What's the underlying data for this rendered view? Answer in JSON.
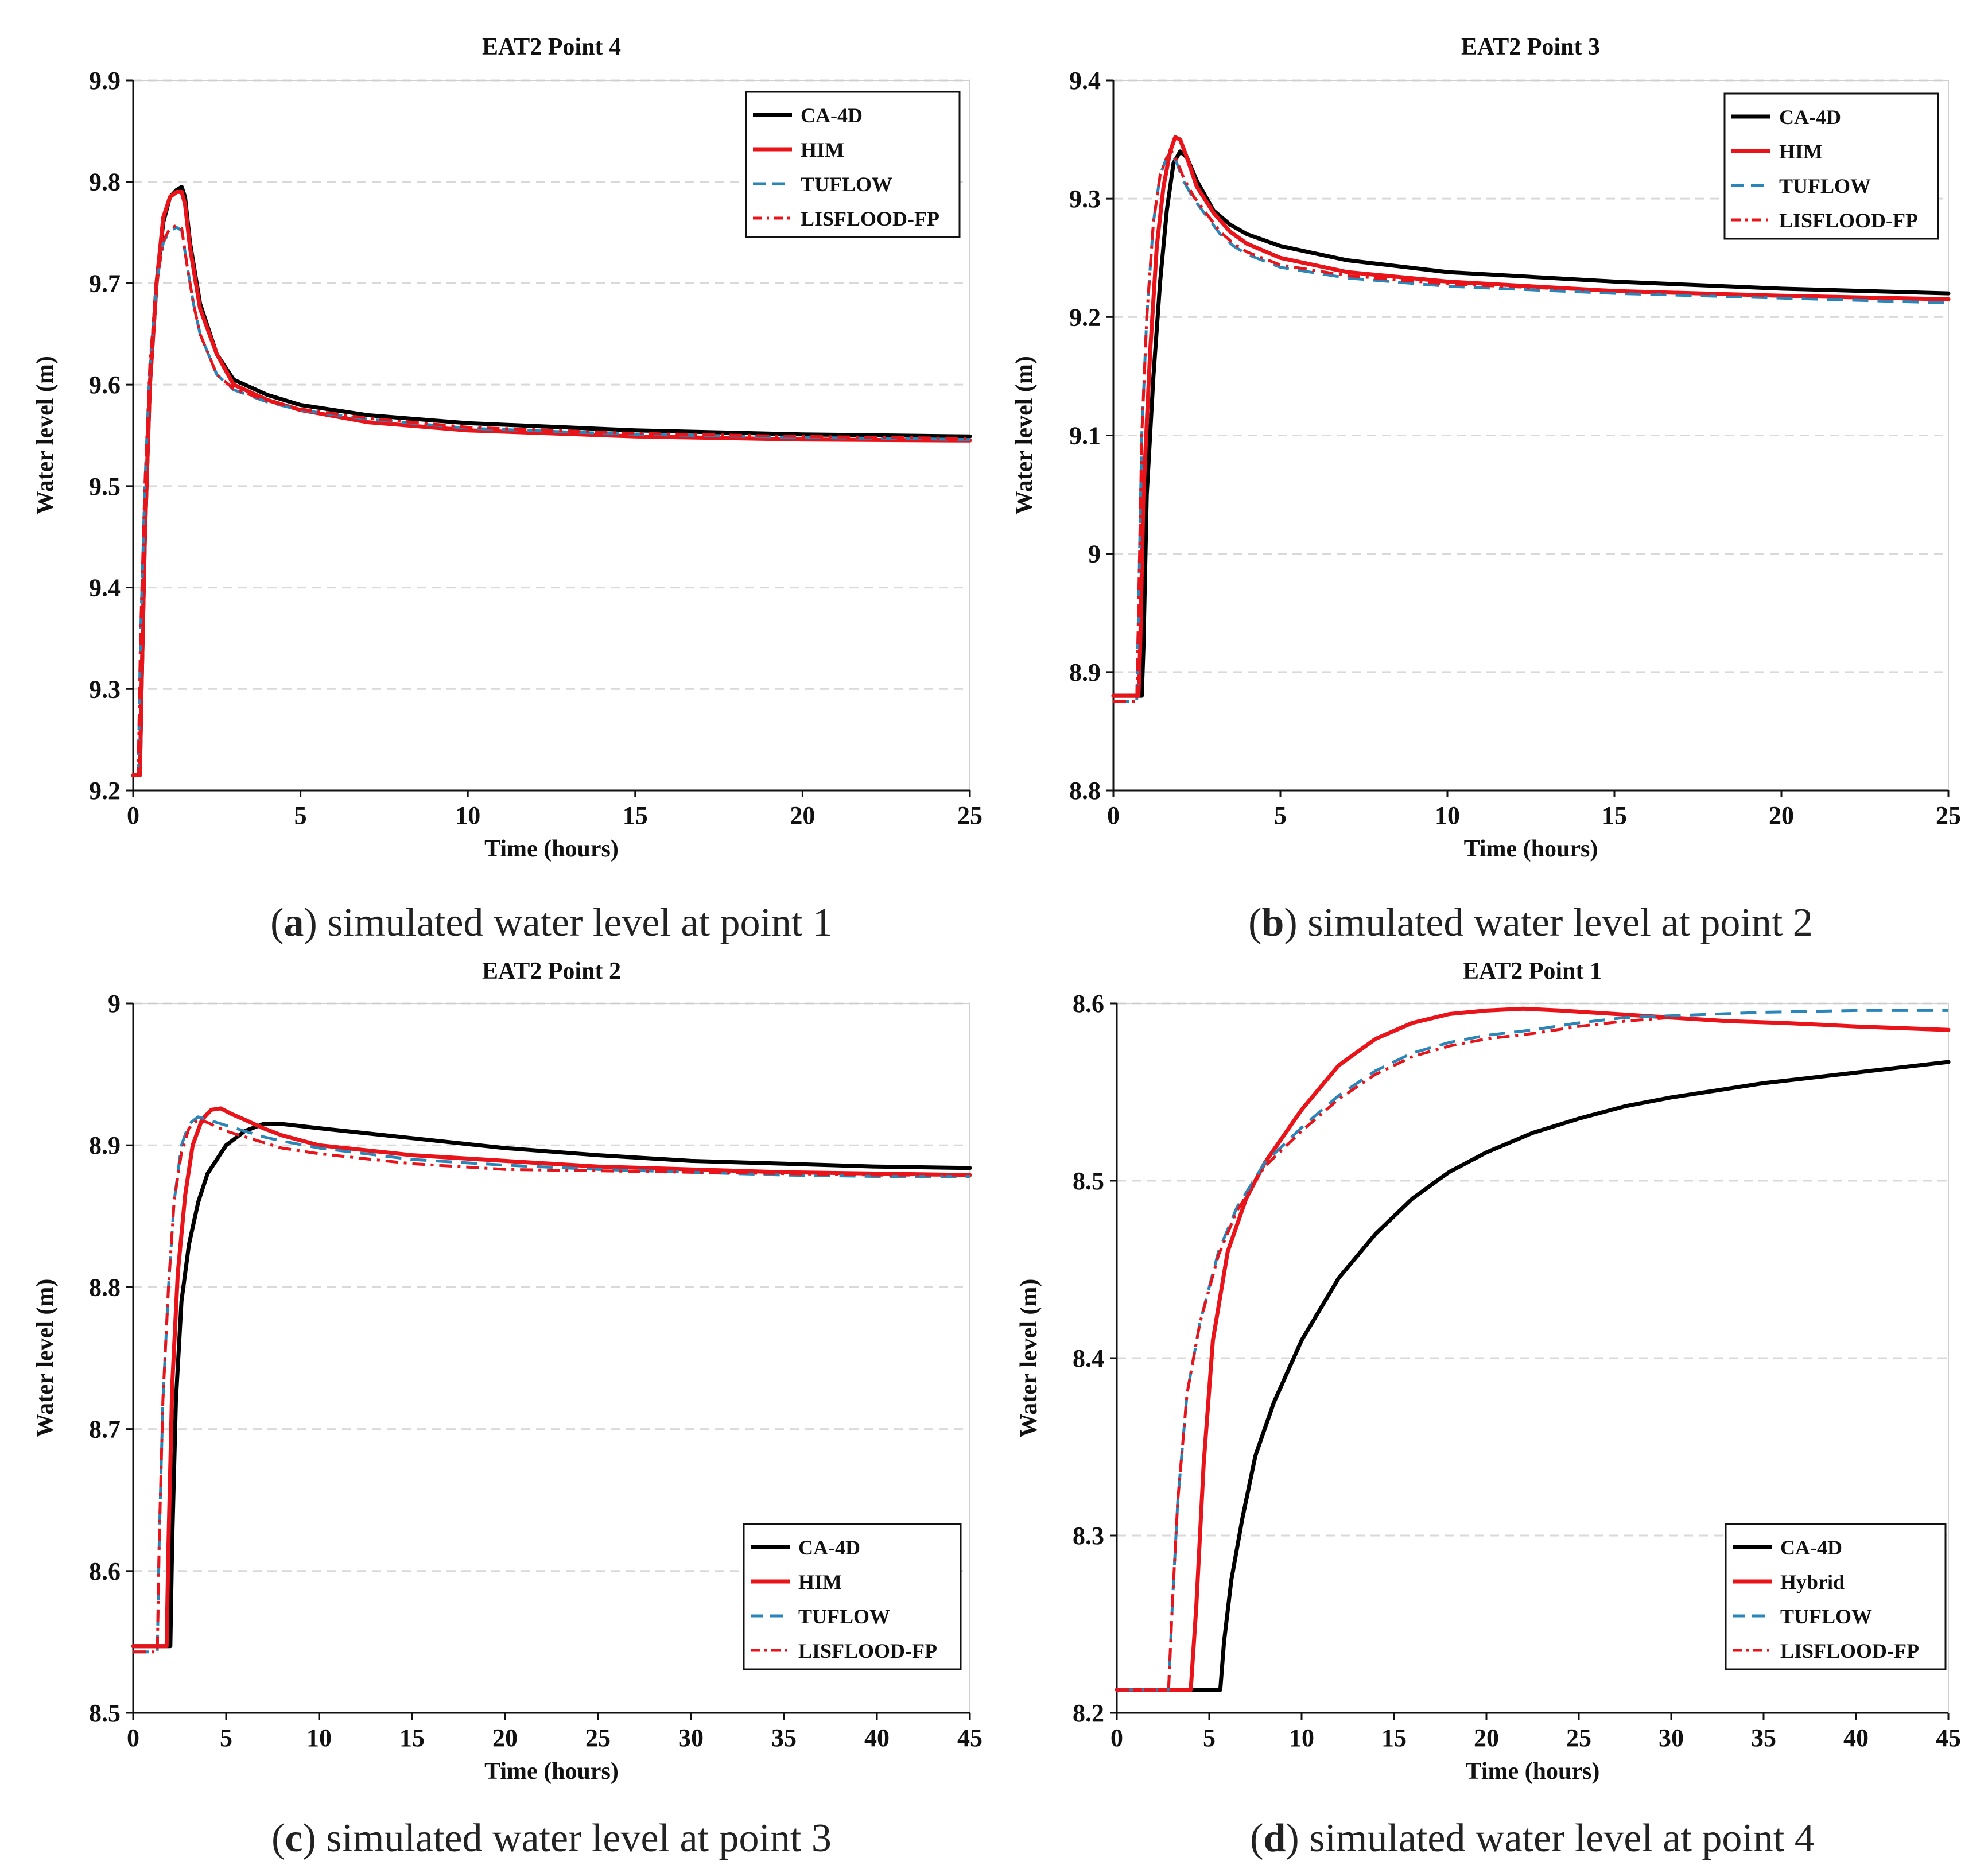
{
  "chart_data": [
    {
      "type": "line",
      "title": "EAT2 Point 4",
      "caption_letter": "a",
      "caption_text": "simulated water level at point 1",
      "xlabel": "Time (hours)",
      "ylabel": "Water level (m)",
      "xlim": [
        0,
        25
      ],
      "ylim": [
        9.2,
        9.9
      ],
      "xticks": [
        0,
        5,
        10,
        15,
        20,
        25
      ],
      "xtick_labels": [
        "0",
        "5",
        "10",
        "15",
        "20",
        "25"
      ],
      "yticks": [
        9.2,
        9.3,
        9.4,
        9.5,
        9.6,
        9.7,
        9.8,
        9.9
      ],
      "ytick_labels": [
        "9.2",
        "9.3",
        "9.4",
        "9.5",
        "9.6",
        "9.7",
        "9.8",
        "9.9"
      ],
      "grid": true,
      "legend_position": "top-right",
      "series": [
        {
          "name": "CA-4D",
          "color": "#000000",
          "style": "solid",
          "x": [
            0,
            0.2,
            0.25,
            0.35,
            0.5,
            0.7,
            0.9,
            1.1,
            1.3,
            1.45,
            1.55,
            1.7,
            2.0,
            2.5,
            3.0,
            4.0,
            5.0,
            7.0,
            10.0,
            15.0,
            20.0,
            25.0
          ],
          "y": [
            9.215,
            9.215,
            9.3,
            9.45,
            9.6,
            9.7,
            9.76,
            9.785,
            9.792,
            9.795,
            9.785,
            9.74,
            9.68,
            9.63,
            9.605,
            9.59,
            9.58,
            9.57,
            9.562,
            9.555,
            9.551,
            9.549
          ]
        },
        {
          "name": "HIM",
          "color": "#e8141a",
          "style": "solid",
          "x": [
            0,
            0.2,
            0.25,
            0.35,
            0.5,
            0.7,
            0.9,
            1.1,
            1.3,
            1.45,
            1.55,
            1.7,
            2.0,
            2.5,
            3.0,
            4.0,
            5.0,
            7.0,
            10.0,
            15.0,
            20.0,
            25.0
          ],
          "y": [
            9.215,
            9.215,
            9.3,
            9.45,
            9.6,
            9.7,
            9.765,
            9.785,
            9.79,
            9.79,
            9.778,
            9.735,
            9.675,
            9.63,
            9.6,
            9.585,
            9.575,
            9.563,
            9.555,
            9.549,
            9.546,
            9.545
          ]
        },
        {
          "name": "TUFLOW",
          "color": "#2a85b8",
          "style": "dashed",
          "x": [
            0,
            0.15,
            0.22,
            0.35,
            0.5,
            0.7,
            0.9,
            1.1,
            1.3,
            1.45,
            1.6,
            1.8,
            2.0,
            2.5,
            3.0,
            4.0,
            5.0,
            7.0,
            10.0,
            15.0,
            20.0,
            25.0
          ],
          "y": [
            9.215,
            9.215,
            9.35,
            9.5,
            9.62,
            9.7,
            9.74,
            9.752,
            9.755,
            9.752,
            9.72,
            9.68,
            9.65,
            9.61,
            9.595,
            9.583,
            9.575,
            9.566,
            9.557,
            9.551,
            9.548,
            9.546
          ]
        },
        {
          "name": "LISFLOOD-FP",
          "color": "#e8141a",
          "style": "dashdot",
          "x": [
            0,
            0.15,
            0.22,
            0.35,
            0.5,
            0.7,
            0.9,
            1.1,
            1.3,
            1.45,
            1.6,
            1.8,
            2.0,
            2.5,
            3.0,
            4.0,
            5.0,
            7.0,
            10.0,
            15.0,
            20.0,
            25.0
          ],
          "y": [
            9.215,
            9.215,
            9.35,
            9.5,
            9.62,
            9.7,
            9.742,
            9.754,
            9.757,
            9.754,
            9.72,
            9.68,
            9.65,
            9.61,
            9.596,
            9.584,
            9.576,
            9.567,
            9.558,
            9.552,
            9.549,
            9.547
          ]
        }
      ]
    },
    {
      "type": "line",
      "title": "EAT2 Point 3",
      "caption_letter": "b",
      "caption_text": "simulated water level at point 2",
      "xlabel": "Time (hours)",
      "ylabel": "Water level (m)",
      "xlim": [
        0,
        25
      ],
      "ylim": [
        8.8,
        9.4
      ],
      "xticks": [
        0,
        5,
        10,
        15,
        20,
        25
      ],
      "xtick_labels": [
        "0",
        "5",
        "10",
        "15",
        "20",
        "25"
      ],
      "yticks": [
        8.8,
        8.9,
        9.0,
        9.1,
        9.2,
        9.3,
        9.4
      ],
      "ytick_labels": [
        "8.8",
        "8.9",
        "9",
        "9.1",
        "9.2",
        "9.3",
        "9.4"
      ],
      "grid": true,
      "legend_position": "top-right",
      "series": [
        {
          "name": "CA-4D",
          "color": "#000000",
          "style": "solid",
          "x": [
            0,
            0.85,
            0.9,
            1.0,
            1.2,
            1.4,
            1.6,
            1.8,
            2.0,
            2.2,
            2.5,
            3.0,
            3.5,
            4.0,
            5.0,
            7.0,
            10.0,
            15.0,
            20.0,
            25.0
          ],
          "y": [
            8.88,
            8.88,
            8.92,
            9.05,
            9.15,
            9.23,
            9.29,
            9.33,
            9.34,
            9.335,
            9.315,
            9.29,
            9.278,
            9.27,
            9.26,
            9.248,
            9.238,
            9.23,
            9.224,
            9.22
          ]
        },
        {
          "name": "HIM",
          "color": "#e8141a",
          "style": "solid",
          "x": [
            0,
            0.75,
            0.8,
            0.9,
            1.1,
            1.3,
            1.5,
            1.7,
            1.85,
            2.0,
            2.2,
            2.5,
            3.0,
            3.5,
            4.0,
            5.0,
            7.0,
            10.0,
            15.0,
            20.0,
            25.0
          ],
          "y": [
            8.88,
            8.88,
            8.92,
            9.05,
            9.17,
            9.26,
            9.31,
            9.34,
            9.352,
            9.35,
            9.335,
            9.31,
            9.288,
            9.272,
            9.262,
            9.25,
            9.238,
            9.23,
            9.222,
            9.218,
            9.215
          ]
        },
        {
          "name": "TUFLOW",
          "color": "#2a85b8",
          "style": "dashed",
          "x": [
            0,
            0.7,
            0.75,
            0.85,
            1.0,
            1.2,
            1.4,
            1.6,
            1.75,
            1.9,
            2.1,
            2.4,
            2.8,
            3.2,
            3.6,
            4.0,
            5.0,
            7.0,
            10.0,
            15.0,
            20.0,
            25.0
          ],
          "y": [
            8.875,
            8.875,
            8.95,
            9.1,
            9.2,
            9.28,
            9.32,
            9.335,
            9.338,
            9.33,
            9.315,
            9.3,
            9.285,
            9.27,
            9.26,
            9.253,
            9.242,
            9.233,
            9.226,
            9.22,
            9.216,
            9.212
          ]
        },
        {
          "name": "LISFLOOD-FP",
          "color": "#e8141a",
          "style": "dashdot",
          "x": [
            0,
            0.7,
            0.75,
            0.85,
            1.0,
            1.2,
            1.4,
            1.6,
            1.75,
            1.9,
            2.1,
            2.4,
            2.8,
            3.2,
            3.6,
            4.0,
            5.0,
            7.0,
            10.0,
            15.0,
            20.0,
            25.0
          ],
          "y": [
            8.875,
            8.875,
            8.95,
            9.1,
            9.2,
            9.28,
            9.32,
            9.335,
            9.34,
            9.332,
            9.318,
            9.302,
            9.287,
            9.272,
            9.262,
            9.255,
            9.244,
            9.235,
            9.228,
            9.222,
            9.218,
            9.215
          ]
        }
      ]
    },
    {
      "type": "line",
      "title": "EAT2 Point 2",
      "caption_letter": "c",
      "caption_text": "simulated water level at point 3",
      "xlabel": "Time (hours)",
      "ylabel": "Water level (m)",
      "xlim": [
        0,
        45
      ],
      "ylim": [
        8.5,
        9.0
      ],
      "xticks": [
        0,
        5,
        10,
        15,
        20,
        25,
        30,
        35,
        40,
        45
      ],
      "xtick_labels": [
        "0",
        "5",
        "10",
        "15",
        "20",
        "25",
        "30",
        "35",
        "40",
        "45"
      ],
      "yticks": [
        8.5,
        8.6,
        8.7,
        8.8,
        8.9,
        9.0
      ],
      "ytick_labels": [
        "8.5",
        "8.6",
        "8.7",
        "8.8",
        "8.9",
        "9"
      ],
      "grid": true,
      "legend_position": "bottom-right",
      "series": [
        {
          "name": "CA-4D",
          "color": "#000000",
          "style": "solid",
          "x": [
            0,
            2.0,
            2.1,
            2.3,
            2.6,
            3.0,
            3.5,
            4.0,
            5.0,
            6.0,
            7.0,
            8.0,
            10.0,
            15.0,
            20.0,
            25.0,
            30.0,
            35.0,
            40.0,
            45.0
          ],
          "y": [
            8.547,
            8.547,
            8.62,
            8.72,
            8.79,
            8.83,
            8.86,
            8.88,
            8.9,
            8.91,
            8.915,
            8.915,
            8.912,
            8.905,
            8.898,
            8.893,
            8.889,
            8.887,
            8.885,
            8.884
          ]
        },
        {
          "name": "HIM",
          "color": "#e8141a",
          "style": "solid",
          "x": [
            0,
            1.8,
            1.9,
            2.1,
            2.4,
            2.8,
            3.2,
            3.7,
            4.2,
            4.7,
            5.3,
            6.0,
            7.0,
            8.0,
            10.0,
            15.0,
            20.0,
            25.0,
            30.0,
            35.0,
            40.0,
            45.0
          ],
          "y": [
            8.547,
            8.547,
            8.62,
            8.73,
            8.81,
            8.865,
            8.9,
            8.918,
            8.925,
            8.926,
            8.922,
            8.918,
            8.912,
            8.907,
            8.9,
            8.893,
            8.889,
            8.885,
            8.883,
            8.881,
            8.88,
            8.879
          ]
        },
        {
          "name": "TUFLOW",
          "color": "#2a85b8",
          "style": "dashed",
          "x": [
            0,
            1.3,
            1.4,
            1.6,
            1.9,
            2.2,
            2.6,
            3.0,
            3.5,
            4.0,
            5.0,
            6.0,
            7.0,
            8.0,
            10.0,
            15.0,
            20.0,
            25.0,
            30.0,
            35.0,
            40.0,
            45.0
          ],
          "y": [
            8.543,
            8.543,
            8.62,
            8.72,
            8.8,
            8.86,
            8.9,
            8.915,
            8.92,
            8.918,
            8.914,
            8.91,
            8.906,
            8.903,
            8.898,
            8.89,
            8.886,
            8.883,
            8.881,
            8.879,
            8.878,
            8.878
          ]
        },
        {
          "name": "LISFLOOD-FP",
          "color": "#e8141a",
          "style": "dashdot",
          "x": [
            0,
            1.3,
            1.4,
            1.6,
            1.9,
            2.2,
            2.6,
            3.0,
            3.5,
            4.0,
            5.0,
            6.0,
            7.0,
            8.0,
            10.0,
            15.0,
            20.0,
            25.0,
            30.0,
            35.0,
            40.0,
            45.0
          ],
          "y": [
            8.543,
            8.543,
            8.62,
            8.72,
            8.8,
            8.86,
            8.895,
            8.912,
            8.918,
            8.916,
            8.91,
            8.906,
            8.902,
            8.898,
            8.894,
            8.887,
            8.883,
            8.882,
            8.881,
            8.88,
            8.879,
            8.879
          ]
        }
      ]
    },
    {
      "type": "line",
      "title": "EAT2 Point 1",
      "caption_letter": "d",
      "caption_text": "simulated water level at point 4",
      "xlabel": "Time (hours)",
      "ylabel": "Water level (m)",
      "xlim": [
        0,
        45
      ],
      "ylim": [
        8.2,
        8.6
      ],
      "xticks": [
        0,
        5,
        10,
        15,
        20,
        25,
        30,
        35,
        40,
        45
      ],
      "xtick_labels": [
        "0",
        "5",
        "10",
        "15",
        "20",
        "25",
        "30",
        "35",
        "40",
        "45"
      ],
      "yticks": [
        8.2,
        8.3,
        8.4,
        8.5,
        8.6
      ],
      "ytick_labels": [
        "8.2",
        "8.3",
        "8.4",
        "8.5",
        "8.6"
      ],
      "grid": true,
      "legend_position": "bottom-right",
      "series": [
        {
          "name": "CA-4D",
          "color": "#000000",
          "style": "solid",
          "x": [
            0,
            5.6,
            5.8,
            6.2,
            6.8,
            7.5,
            8.5,
            10.0,
            12.0,
            14.0,
            16.0,
            18.0,
            20.0,
            22.5,
            25.0,
            27.5,
            30.0,
            32.5,
            35.0,
            37.5,
            40.0,
            42.5,
            45.0
          ],
          "y": [
            8.213,
            8.213,
            8.24,
            8.275,
            8.31,
            8.345,
            8.375,
            8.41,
            8.445,
            8.47,
            8.49,
            8.505,
            8.516,
            8.527,
            8.535,
            8.542,
            8.547,
            8.551,
            8.555,
            8.558,
            8.561,
            8.564,
            8.567
          ]
        },
        {
          "name": "Hybrid",
          "color": "#e8141a",
          "style": "solid",
          "x": [
            0,
            4.0,
            4.3,
            4.7,
            5.2,
            6.0,
            7.0,
            8.0,
            10.0,
            12.0,
            14.0,
            16.0,
            18.0,
            20.0,
            22.0,
            24.0,
            27.0,
            30.0,
            33.0,
            36.0,
            40.0,
            45.0
          ],
          "y": [
            8.213,
            8.213,
            8.26,
            8.34,
            8.41,
            8.46,
            8.49,
            8.51,
            8.54,
            8.565,
            8.58,
            8.589,
            8.594,
            8.596,
            8.597,
            8.596,
            8.594,
            8.592,
            8.59,
            8.589,
            8.587,
            8.585
          ]
        },
        {
          "name": "TUFLOW",
          "color": "#2a85b8",
          "style": "dashed",
          "x": [
            0,
            2.8,
            3.0,
            3.3,
            3.8,
            4.5,
            5.5,
            6.5,
            8.0,
            10.0,
            12.0,
            14.0,
            16.0,
            18.0,
            20.0,
            22.5,
            25.0,
            27.5,
            30.0,
            35.0,
            40.0,
            45.0
          ],
          "y": [
            8.213,
            8.213,
            8.26,
            8.32,
            8.38,
            8.42,
            8.46,
            8.485,
            8.51,
            8.53,
            8.548,
            8.562,
            8.572,
            8.578,
            8.582,
            8.585,
            8.589,
            8.592,
            8.593,
            8.595,
            8.596,
            8.596
          ]
        },
        {
          "name": "LISFLOOD-FP",
          "color": "#e8141a",
          "style": "dashdot",
          "x": [
            0,
            2.8,
            3.0,
            3.3,
            3.8,
            4.5,
            5.5,
            6.5,
            8.0,
            10.0,
            12.0,
            14.0,
            16.0,
            18.0,
            20.0,
            22.5,
            25.0,
            27.5,
            30.0
          ],
          "y": [
            8.213,
            8.213,
            8.26,
            8.32,
            8.38,
            8.42,
            8.458,
            8.483,
            8.508,
            8.528,
            8.546,
            8.56,
            8.57,
            8.576,
            8.58,
            8.583,
            8.587,
            8.59,
            8.592
          ]
        }
      ]
    }
  ]
}
